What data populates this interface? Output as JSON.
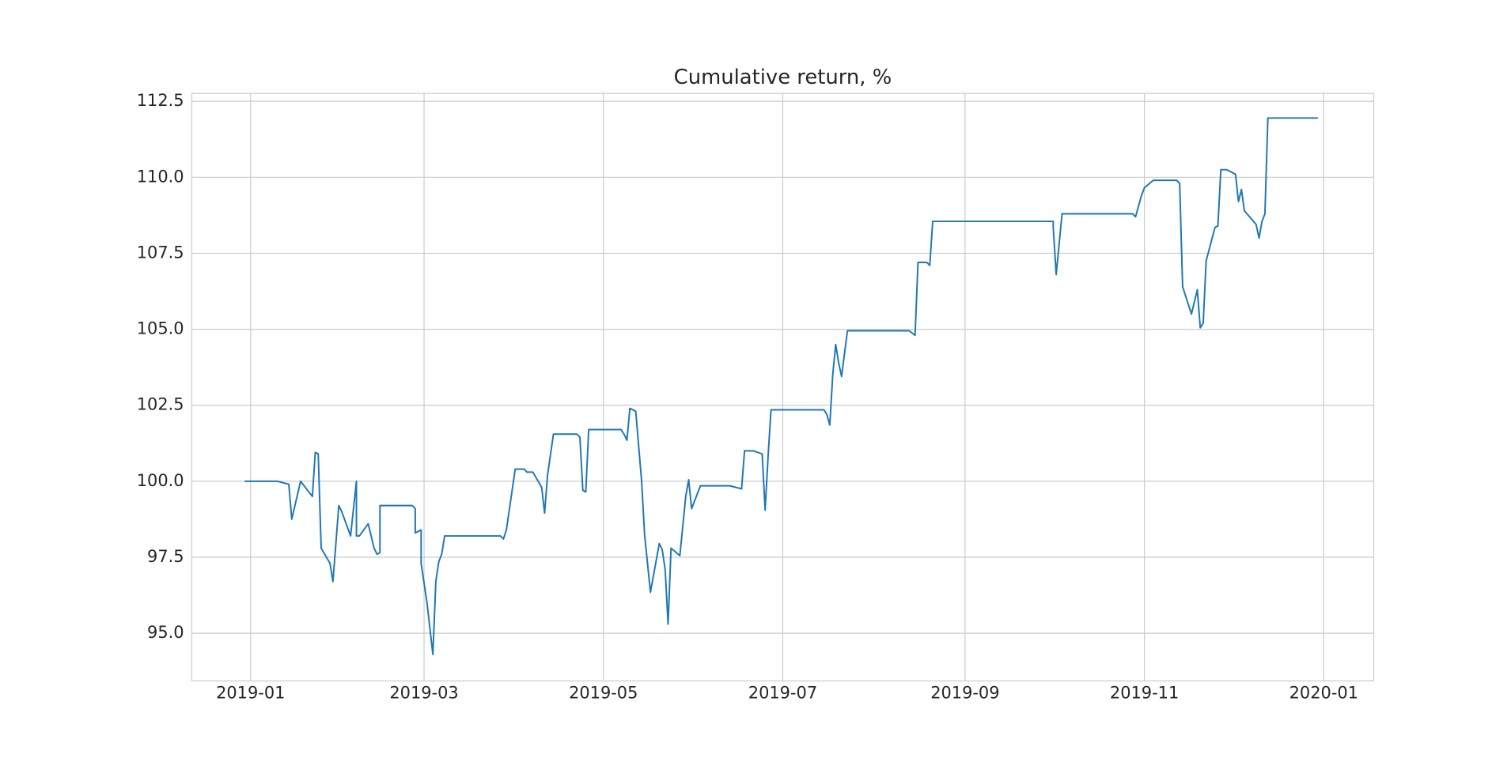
{
  "chart_data": {
    "type": "line",
    "title": "Cumulative return, %",
    "x": [
      -2,
      9,
      13,
      14,
      17,
      21,
      22,
      23,
      24,
      27,
      28,
      30,
      31,
      34,
      36,
      36,
      37,
      40,
      42,
      43,
      44,
      44,
      55,
      56,
      56,
      58,
      58,
      60,
      62,
      63,
      64,
      65,
      66,
      85,
      86,
      87,
      90,
      93,
      94,
      96,
      99,
      100,
      101,
      103,
      111,
      112,
      113,
      114,
      115,
      126,
      127,
      128,
      129,
      131,
      133,
      134,
      136,
      139,
      140,
      141,
      142,
      143,
      146,
      148,
      149,
      150,
      153,
      163,
      167,
      168,
      171,
      174,
      175,
      176,
      177,
      195,
      196,
      197,
      198,
      199,
      200,
      201,
      203,
      224,
      226,
      227,
      230,
      231,
      232,
      273,
      273,
      274,
      276,
      300,
      301,
      303,
      304,
      307,
      315,
      316,
      317,
      320,
      322,
      323,
      324,
      325,
      328,
      329,
      330,
      332,
      335,
      336,
      337,
      338,
      342,
      343,
      344,
      345,
      346,
      363
    ],
    "values": [
      100.0,
      100.0,
      99.9,
      98.75,
      100.0,
      99.5,
      100.95,
      100.9,
      97.8,
      97.3,
      96.7,
      99.2,
      99.0,
      98.2,
      100.0,
      98.2,
      98.2,
      98.6,
      97.8,
      97.6,
      97.65,
      99.2,
      99.2,
      99.1,
      98.3,
      98.4,
      97.3,
      96.0,
      94.3,
      96.7,
      97.35,
      97.6,
      98.2,
      98.2,
      98.1,
      98.4,
      100.4,
      100.4,
      100.3,
      100.3,
      99.8,
      98.95,
      100.2,
      101.55,
      101.55,
      101.45,
      99.7,
      99.65,
      101.7,
      101.7,
      101.55,
      101.35,
      102.4,
      102.3,
      100.0,
      98.25,
      96.35,
      97.95,
      97.75,
      97.1,
      95.3,
      97.8,
      97.55,
      99.5,
      100.05,
      99.1,
      99.85,
      99.85,
      99.75,
      101.0,
      101.0,
      100.9,
      99.05,
      100.8,
      102.35,
      102.35,
      102.2,
      101.85,
      103.5,
      104.5,
      103.9,
      103.45,
      104.95,
      104.95,
      104.8,
      107.2,
      107.2,
      107.1,
      108.55,
      108.55,
      108.35,
      106.8,
      108.8,
      108.8,
      108.7,
      109.4,
      109.65,
      109.9,
      109.9,
      109.8,
      106.4,
      105.5,
      106.3,
      105.05,
      105.2,
      107.25,
      108.35,
      108.4,
      110.25,
      110.25,
      110.1,
      109.2,
      109.6,
      108.9,
      108.45,
      108.0,
      108.55,
      108.8,
      111.95,
      111.95
    ],
    "color": "#1f77b4",
    "xlim": [
      -20,
      382
    ],
    "xticks": [
      {
        "value": 0,
        "label": "2019-01"
      },
      {
        "value": 59,
        "label": "2019-03"
      },
      {
        "value": 120,
        "label": "2019-05"
      },
      {
        "value": 181,
        "label": "2019-07"
      },
      {
        "value": 243,
        "label": "2019-09"
      },
      {
        "value": 304,
        "label": "2019-11"
      },
      {
        "value": 365,
        "label": "2020-01"
      }
    ],
    "ylim": [
      93.43,
      112.76
    ],
    "yticks": [
      {
        "value": 95,
        "label": "95.0"
      },
      97.5,
      {
        "value": 100,
        "label": "100.0"
      },
      102.5,
      {
        "value": 105,
        "label": "105.0"
      },
      107.5,
      {
        "value": 110,
        "label": "110.0"
      },
      112.5
    ],
    "grid": true
  }
}
